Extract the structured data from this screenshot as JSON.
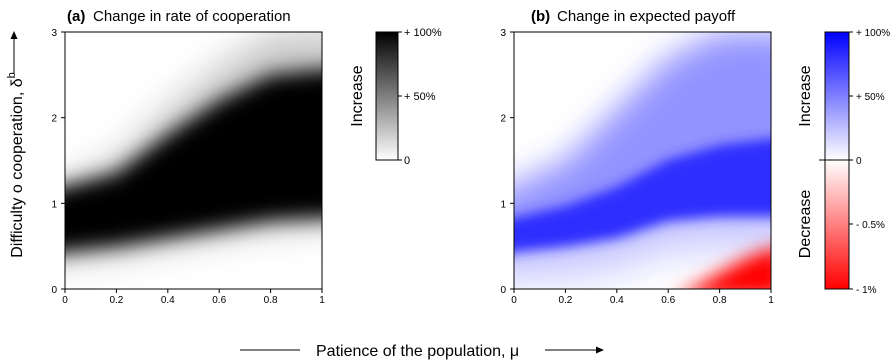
{
  "chart_data": [
    {
      "type": "heatmap",
      "panel": "(a)",
      "title": "Change in rate of cooperation",
      "xlabel": "Patience of the population, μ",
      "ylabel": "Difficulty o cooperation, δ",
      "ylabel_superscript": "b",
      "xlim": [
        0,
        1
      ],
      "ylim": [
        0,
        3
      ],
      "x_ticks": [
        "0",
        "0.2",
        "0.4",
        "0.6",
        "0.8",
        "1"
      ],
      "y_ticks": [
        "0",
        "1",
        "2",
        "3"
      ],
      "colorbar": {
        "label": "Increase",
        "ticks": [
          "+ 100%",
          "+ 50%",
          "0"
        ],
        "colors": [
          "#000000",
          "#ffffff"
        ]
      },
      "region_boundaries": {
        "mu": [
          0,
          0.2,
          0.4,
          0.6,
          0.8,
          1.0
        ],
        "lower": [
          0.4,
          0.5,
          0.6,
          0.7,
          0.8,
          0.85
        ],
        "upper": [
          1.1,
          1.35,
          1.8,
          2.2,
          2.5,
          2.6
        ],
        "upper_faint": [
          1.1,
          1.5,
          2.1,
          2.6,
          3.0,
          3.0
        ]
      }
    },
    {
      "type": "heatmap",
      "panel": "(b)",
      "title": "Change in expected payoff",
      "xlim": [
        0,
        1
      ],
      "ylim": [
        0,
        3
      ],
      "x_ticks": [
        "0",
        "0.2",
        "0.4",
        "0.6",
        "0.8",
        "1"
      ],
      "y_ticks": [
        "0",
        "1",
        "2",
        "3"
      ],
      "colorbar": {
        "label_top": "Increase",
        "label_bottom": "Decrease",
        "ticks": [
          "+ 100%",
          "+ 50%",
          "0",
          "- 0.5%",
          "- 1%"
        ],
        "colors": [
          "#0000ff",
          "#ffffff",
          "#ff0000"
        ]
      },
      "region_boundaries": {
        "mu": [
          0,
          0.2,
          0.4,
          0.6,
          0.8,
          1.0
        ],
        "lower": [
          0.4,
          0.5,
          0.6,
          0.8,
          0.85,
          0.85
        ],
        "upper": [
          1.05,
          1.5,
          2.1,
          2.7,
          3.0,
          3.0
        ],
        "decrease_region_mu_start": 0.62,
        "decrease_region_max": 0.45
      }
    }
  ]
}
